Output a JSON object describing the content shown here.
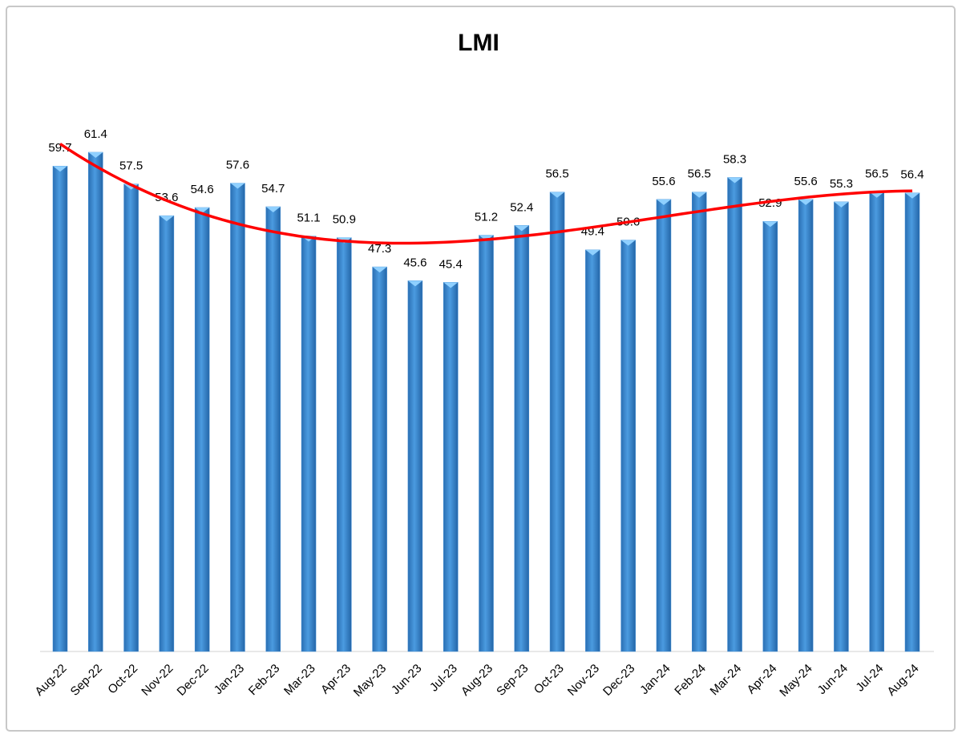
{
  "chart_data": {
    "type": "bar",
    "title": "LMI",
    "categories": [
      "Aug-22",
      "Sep-22",
      "Oct-22",
      "Nov-22",
      "Dec-22",
      "Jan-23",
      "Feb-23",
      "Mar-23",
      "Apr-23",
      "May-23",
      "Jun-23",
      "Jul-23",
      "Aug-23",
      "Sep-23",
      "Oct-23",
      "Nov-23",
      "Dec-23",
      "Jan-24",
      "Feb-24",
      "Mar-24",
      "Apr-24",
      "May-24",
      "Jun-24",
      "Jul-24",
      "Aug-24"
    ],
    "values": [
      59.7,
      61.4,
      57.5,
      53.6,
      54.6,
      57.6,
      54.7,
      51.1,
      50.9,
      47.3,
      45.6,
      45.4,
      51.2,
      52.4,
      56.5,
      49.4,
      50.6,
      55.6,
      56.5,
      58.3,
      52.9,
      55.6,
      55.3,
      56.5,
      56.4
    ],
    "color": "#3d8bd4",
    "trendline": true,
    "trendline_color": "#ff0000"
  }
}
